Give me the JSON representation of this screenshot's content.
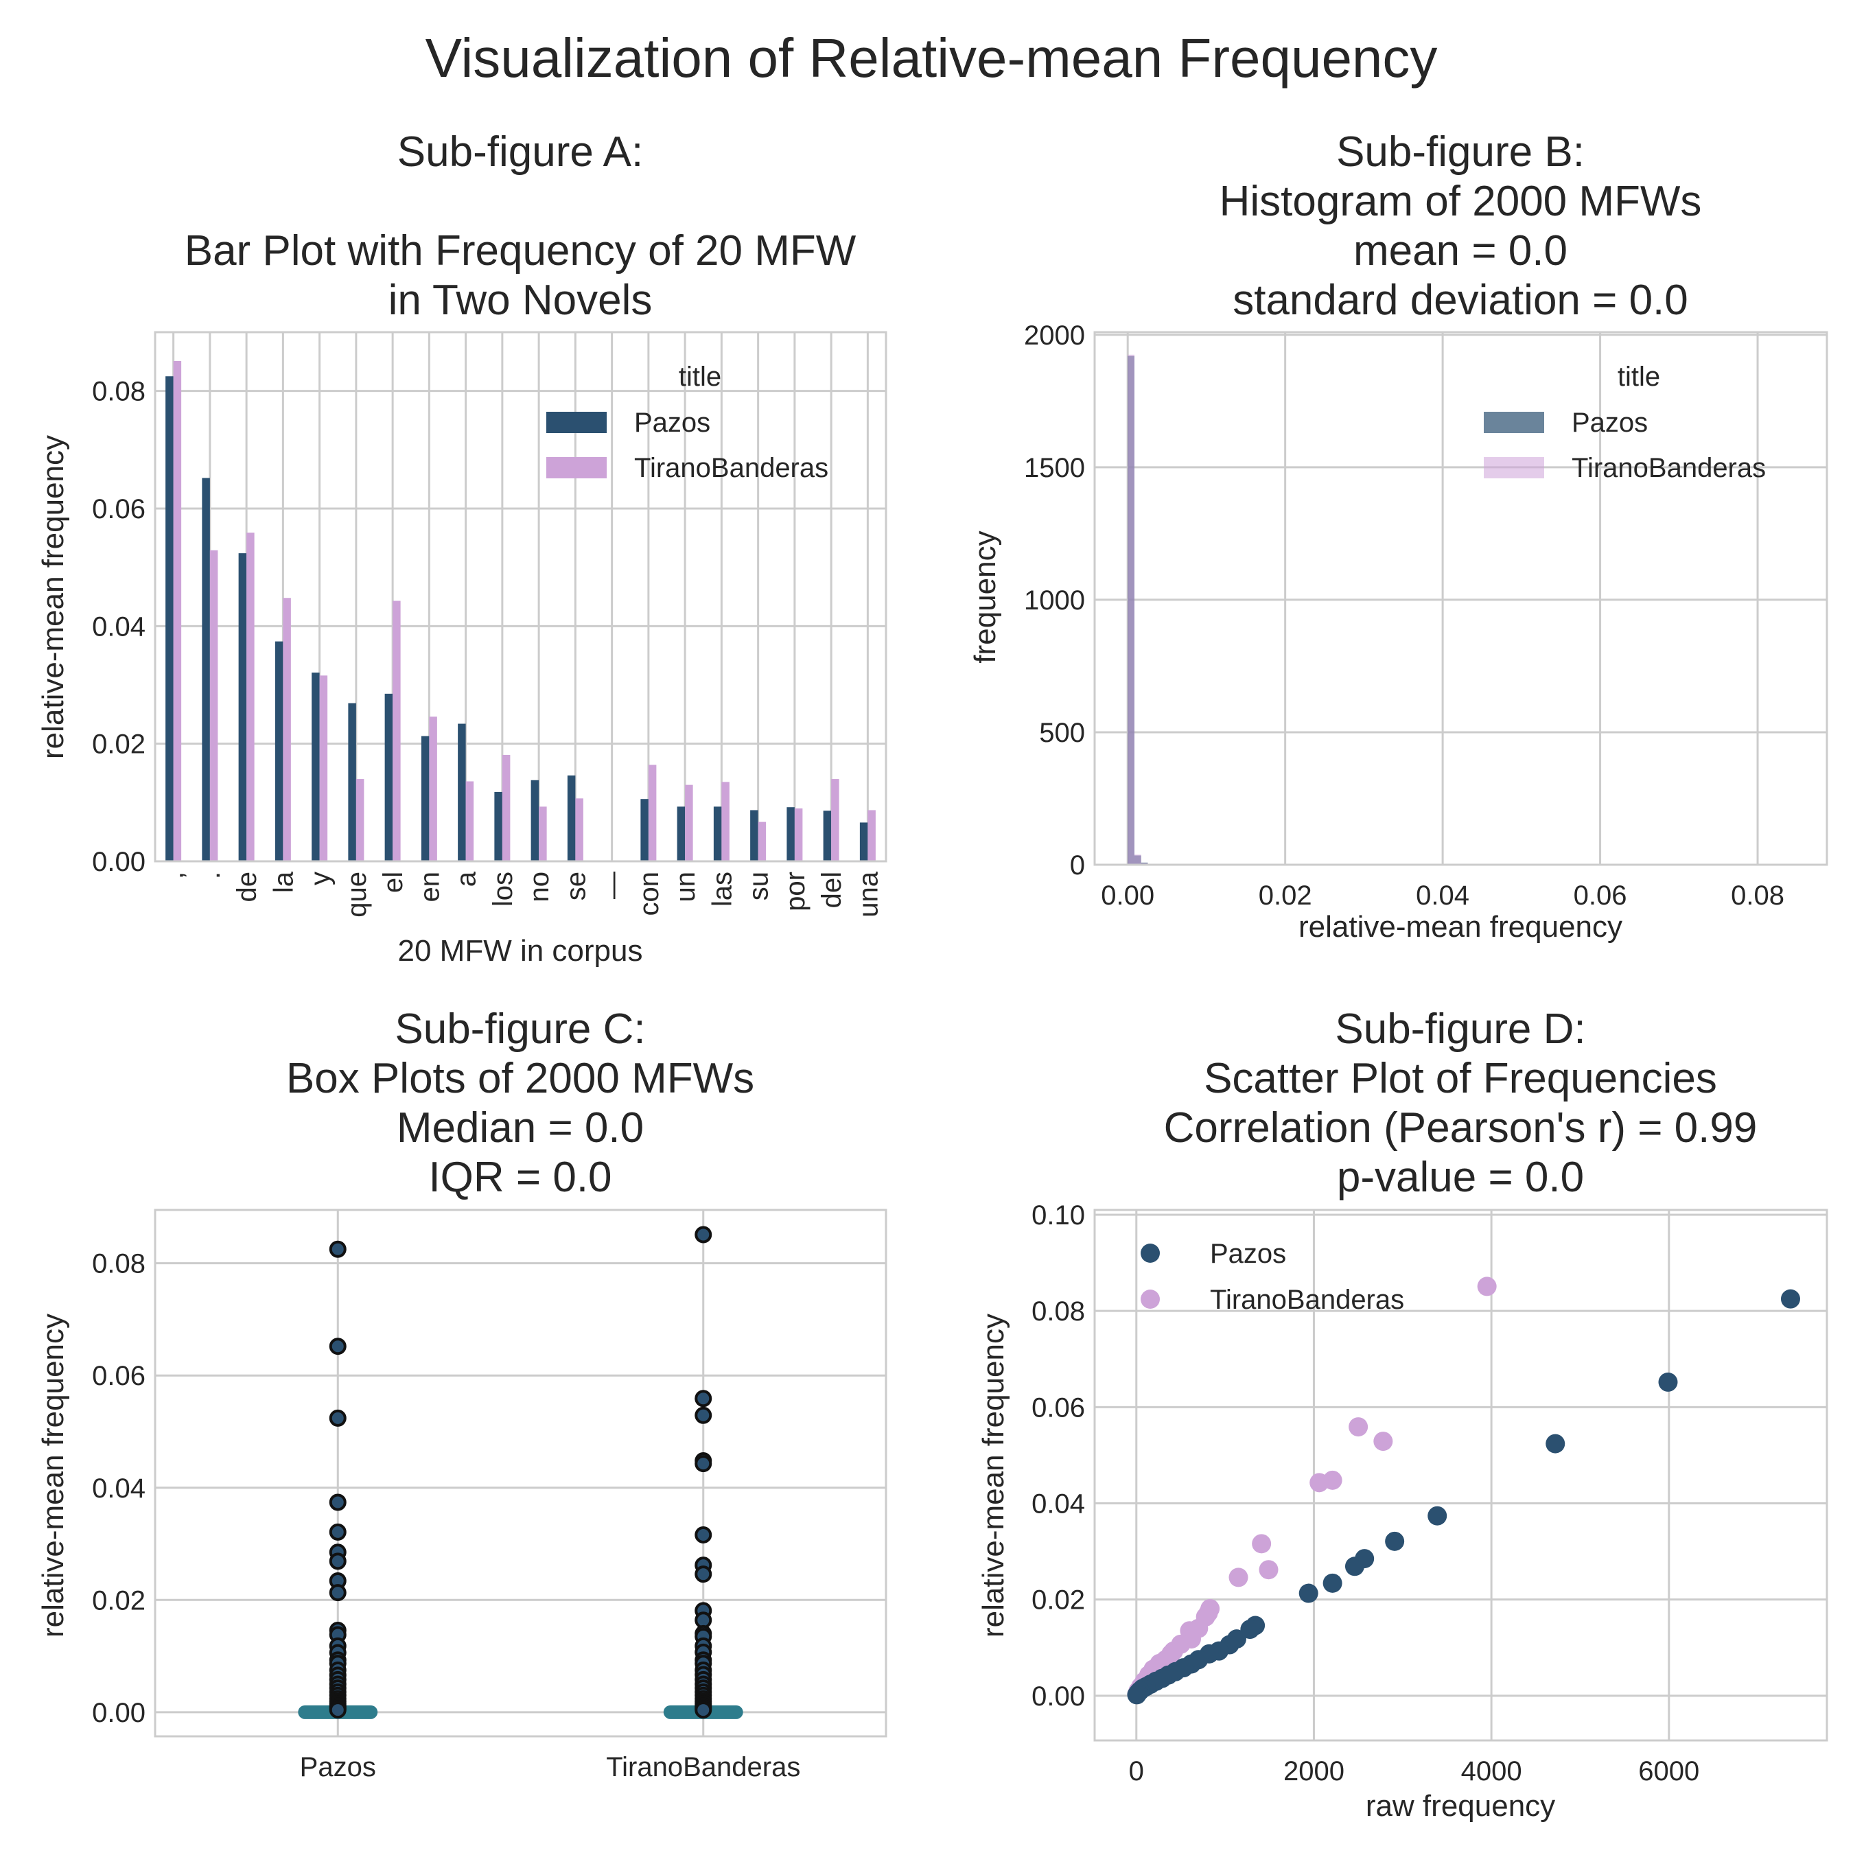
{
  "figure": {
    "title": "Visualization of Relative-mean Frequency",
    "colors": {
      "Pazos": "#2b5070",
      "TiranoBanderas": "#cda3d8",
      "box": "#2e7c8c",
      "grid": "#cccccc",
      "text": "#262626"
    }
  },
  "chart_data": [
    {
      "id": "A",
      "type": "bar",
      "title_lines": [
        "Sub-figure A:",
        "",
        "Bar Plot with Frequency of 20 MFW",
        "in Two Novels"
      ],
      "xlabel": "20 MFW in corpus",
      "ylabel": "relative-mean frequency",
      "categories": [
        ",",
        ".",
        "de",
        "la",
        "y",
        "que",
        "el",
        "en",
        "a",
        "los",
        "no",
        "se",
        "—",
        "con",
        "un",
        "las",
        "su",
        "por",
        "del",
        "una"
      ],
      "series": [
        {
          "name": "Pazos",
          "values": [
            0.0825,
            0.0652,
            0.0524,
            0.0374,
            0.0321,
            0.0269,
            0.0285,
            0.0213,
            0.0234,
            0.0118,
            0.0138,
            0.0146,
            0.0,
            0.0106,
            0.0093,
            0.0093,
            0.0087,
            0.0092,
            0.0086,
            0.0066
          ]
        },
        {
          "name": "TiranoBanderas",
          "values": [
            0.0851,
            0.0529,
            0.0559,
            0.0448,
            0.0316,
            0.014,
            0.0443,
            0.0246,
            0.0136,
            0.0181,
            0.0093,
            0.0107,
            0.0,
            0.0164,
            0.013,
            0.0135,
            0.0067,
            0.009,
            0.014,
            0.0087
          ]
        }
      ],
      "ylim": [
        0,
        0.09
      ],
      "yticks": [
        0.0,
        0.02,
        0.04,
        0.06,
        0.08
      ],
      "ytick_labels": [
        "0.00",
        "0.02",
        "0.04",
        "0.06",
        "0.08"
      ],
      "legend": {
        "title": "title",
        "position": "top-right"
      },
      "grid": true
    },
    {
      "id": "B",
      "type": "histogram",
      "title_lines": [
        "Sub-figure B:",
        "Histogram of 2000 MFWs",
        "mean =  0.0",
        "standard deviation = 0.0"
      ],
      "xlabel": "relative-mean frequency",
      "ylabel": "frequency",
      "bin_width": 0.00085,
      "series": [
        {
          "name": "Pazos",
          "bins": [
            [
              0.0,
              1920
            ],
            [
              0.00085,
              35
            ],
            [
              0.0017,
              8
            ]
          ]
        },
        {
          "name": "TiranoBanderas",
          "bins": [
            [
              0.0,
              1925
            ],
            [
              0.00085,
              38
            ],
            [
              0.0017,
              6
            ]
          ]
        }
      ],
      "xlim": [
        -0.0042,
        0.0888
      ],
      "ylim": [
        0,
        2010
      ],
      "xticks": [
        0.0,
        0.02,
        0.04,
        0.06,
        0.08
      ],
      "xtick_labels": [
        "0.00",
        "0.02",
        "0.04",
        "0.06",
        "0.08"
      ],
      "yticks": [
        0,
        500,
        1000,
        1500,
        2000
      ],
      "ytick_labels": [
        "0",
        "500",
        "1000",
        "1500",
        "2000"
      ],
      "legend": {
        "title": "title",
        "position": "top-right"
      },
      "grid": true
    },
    {
      "id": "C",
      "type": "box",
      "title_lines": [
        "Sub-figure C:",
        "Box Plots of 2000 MFWs",
        "Median =  0.0",
        "IQR = 0.0"
      ],
      "ylabel": "relative-mean frequency",
      "categories": [
        "Pazos",
        "TiranoBanderas"
      ],
      "box_width": 0.18,
      "outliers": [
        [
          0.0825,
          0.0652,
          0.0524,
          0.0374,
          0.0321,
          0.0285,
          0.0269,
          0.0234,
          0.0213,
          0.0146,
          0.0138,
          0.0118,
          0.0106,
          0.0093,
          0.0087,
          0.0075,
          0.0066,
          0.0058,
          0.005,
          0.0043,
          0.0036,
          0.003,
          0.0024,
          0.0019,
          0.0015,
          0.0011,
          0.0008,
          0.0006,
          0.0004
        ],
        [
          0.0851,
          0.0559,
          0.0529,
          0.0448,
          0.0443,
          0.0316,
          0.0262,
          0.0246,
          0.0181,
          0.0164,
          0.014,
          0.0135,
          0.0118,
          0.0107,
          0.0093,
          0.0087,
          0.0075,
          0.0067,
          0.0058,
          0.005,
          0.0043,
          0.0036,
          0.003,
          0.0024,
          0.0019,
          0.0015,
          0.0011,
          0.0008,
          0.0006,
          0.0004
        ]
      ],
      "ylim": [
        -0.0043,
        0.0895
      ],
      "yticks": [
        0.0,
        0.02,
        0.04,
        0.06,
        0.08
      ],
      "ytick_labels": [
        "0.00",
        "0.02",
        "0.04",
        "0.06",
        "0.08"
      ],
      "grid": true
    },
    {
      "id": "D",
      "type": "scatter",
      "title_lines": [
        "Sub-figure D:",
        "Scatter Plot of Frequencies",
        "Correlation (Pearson's r) =  0.99",
        "p-value = 0.0"
      ],
      "xlabel": "raw frequency",
      "ylabel": "relative-mean frequency",
      "series": [
        {
          "name": "Pazos",
          "x": [
            7370,
            5990,
            4720,
            3390,
            2910,
            2570,
            2460,
            2210,
            1940,
            1340,
            1280,
            1130,
            1050,
            930,
            820,
            700,
            620,
            530,
            440,
            360,
            290,
            220,
            160,
            110,
            70,
            40,
            20,
            5
          ],
          "y": [
            0.0825,
            0.0652,
            0.0524,
            0.0374,
            0.0321,
            0.0285,
            0.0269,
            0.0234,
            0.0213,
            0.0146,
            0.0138,
            0.0118,
            0.0106,
            0.0093,
            0.0087,
            0.0075,
            0.0066,
            0.0058,
            0.005,
            0.0043,
            0.0036,
            0.003,
            0.0024,
            0.0019,
            0.0015,
            0.001,
            0.0006,
            0.0002
          ]
        },
        {
          "name": "TiranoBanderas",
          "x": [
            3950,
            2500,
            2780,
            2210,
            2060,
            1410,
            1490,
            1150,
            830,
            780,
            810,
            700,
            600,
            620,
            500,
            420,
            390,
            330,
            260,
            190,
            140,
            90,
            50,
            20,
            5
          ],
          "y": [
            0.0851,
            0.0559,
            0.0529,
            0.0448,
            0.0443,
            0.0316,
            0.0262,
            0.0246,
            0.0181,
            0.0164,
            0.0172,
            0.014,
            0.0135,
            0.0118,
            0.0107,
            0.0093,
            0.0087,
            0.0075,
            0.0067,
            0.0055,
            0.0043,
            0.003,
            0.0019,
            0.001,
            0.0003
          ]
        }
      ],
      "xlim": [
        -470,
        7780
      ],
      "ylim": [
        -0.0093,
        0.101
      ],
      "xticks": [
        0,
        2000,
        4000,
        6000
      ],
      "xtick_labels": [
        "0",
        "2000",
        "4000",
        "6000"
      ],
      "yticks": [
        0.0,
        0.02,
        0.04,
        0.06,
        0.08,
        0.1
      ],
      "ytick_labels": [
        "0.00",
        "0.02",
        "0.04",
        "0.06",
        "0.08",
        "0.10"
      ],
      "legend": {
        "position": "top-left"
      },
      "grid": true
    }
  ]
}
